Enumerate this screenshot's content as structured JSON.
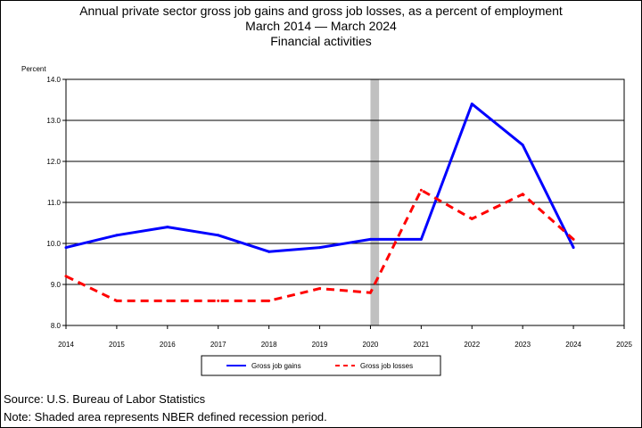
{
  "chart_data": {
    "type": "line",
    "title": "Annual private sector gross job gains and gross job losses, as a percent of employment",
    "subtitle": "March 2014 — March 2024",
    "subtitle2": "Financial activities",
    "ylabel": "Percent",
    "xlabel": "",
    "ylim": [
      8.0,
      14.0
    ],
    "xlim": [
      2014,
      2025
    ],
    "yticks": [
      "8.0",
      "9.0",
      "10.0",
      "11.0",
      "12.0",
      "13.0",
      "14.0"
    ],
    "xticks": [
      "2014",
      "2015",
      "2016",
      "2017",
      "2018",
      "2019",
      "2020",
      "2021",
      "2022",
      "2023",
      "2024",
      "2025"
    ],
    "grid": true,
    "legend": "bottom-center",
    "recession": {
      "start": 2020.0,
      "end": 2020.17,
      "color": "#c0c0c0"
    },
    "series": [
      {
        "name": "Gross job gains",
        "color": "#0000ff",
        "style": "solid",
        "x": [
          2014,
          2015,
          2016,
          2017,
          2018,
          2019,
          2020,
          2021,
          2022,
          2023,
          2024
        ],
        "values": [
          9.9,
          10.2,
          10.4,
          10.2,
          9.8,
          9.9,
          10.1,
          10.1,
          13.4,
          12.4,
          9.9
        ]
      },
      {
        "name": "Gross job losses",
        "color": "#ff0000",
        "style": "dashed",
        "x": [
          2014,
          2015,
          2016,
          2017,
          2018,
          2019,
          2020,
          2021,
          2022,
          2023,
          2024
        ],
        "values": [
          9.2,
          8.6,
          8.6,
          8.6,
          8.6,
          8.9,
          8.8,
          11.3,
          10.6,
          11.2,
          10.1
        ]
      }
    ]
  },
  "footer": {
    "source": "Source: U.S. Bureau of Labor Statistics",
    "note": "Note: Shaded area represents NBER defined recession period."
  }
}
